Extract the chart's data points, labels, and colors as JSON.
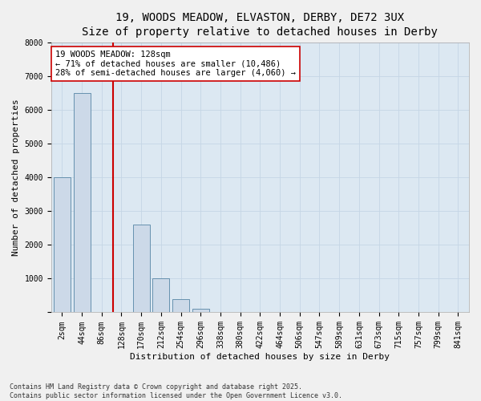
{
  "title_line1": "19, WOODS MEADOW, ELVASTON, DERBY, DE72 3UX",
  "title_line2": "Size of property relative to detached houses in Derby",
  "xlabel": "Distribution of detached houses by size in Derby",
  "ylabel": "Number of detached properties",
  "categories": [
    "2sqm",
    "44sqm",
    "86sqm",
    "128sqm",
    "170sqm",
    "212sqm",
    "254sqm",
    "296sqm",
    "338sqm",
    "380sqm",
    "422sqm",
    "464sqm",
    "506sqm",
    "547sqm",
    "589sqm",
    "631sqm",
    "673sqm",
    "715sqm",
    "757sqm",
    "799sqm",
    "841sqm"
  ],
  "values": [
    4000,
    6500,
    0,
    0,
    2600,
    1000,
    400,
    100,
    20,
    0,
    0,
    0,
    0,
    0,
    0,
    0,
    0,
    0,
    0,
    0,
    0
  ],
  "bar_color": "#ccd9e8",
  "bar_edge_color": "#5585a5",
  "red_line_index": 3,
  "property_line_color": "#cc0000",
  "annotation_text": "19 WOODS MEADOW: 128sqm\n← 71% of detached houses are smaller (10,486)\n28% of semi-detached houses are larger (4,060) →",
  "annotation_box_color": "#ffffff",
  "annotation_box_edge_color": "#cc0000",
  "ylim": [
    0,
    8000
  ],
  "yticks": [
    0,
    1000,
    2000,
    3000,
    4000,
    5000,
    6000,
    7000,
    8000
  ],
  "grid_color": "#c5d5e5",
  "background_color": "#dce8f2",
  "fig_background_color": "#f0f0f0",
  "footer_line1": "Contains HM Land Registry data © Crown copyright and database right 2025.",
  "footer_line2": "Contains public sector information licensed under the Open Government Licence v3.0.",
  "title_fontsize": 10,
  "axis_label_fontsize": 8,
  "tick_fontsize": 7,
  "annotation_fontsize": 7.5,
  "footer_fontsize": 6
}
